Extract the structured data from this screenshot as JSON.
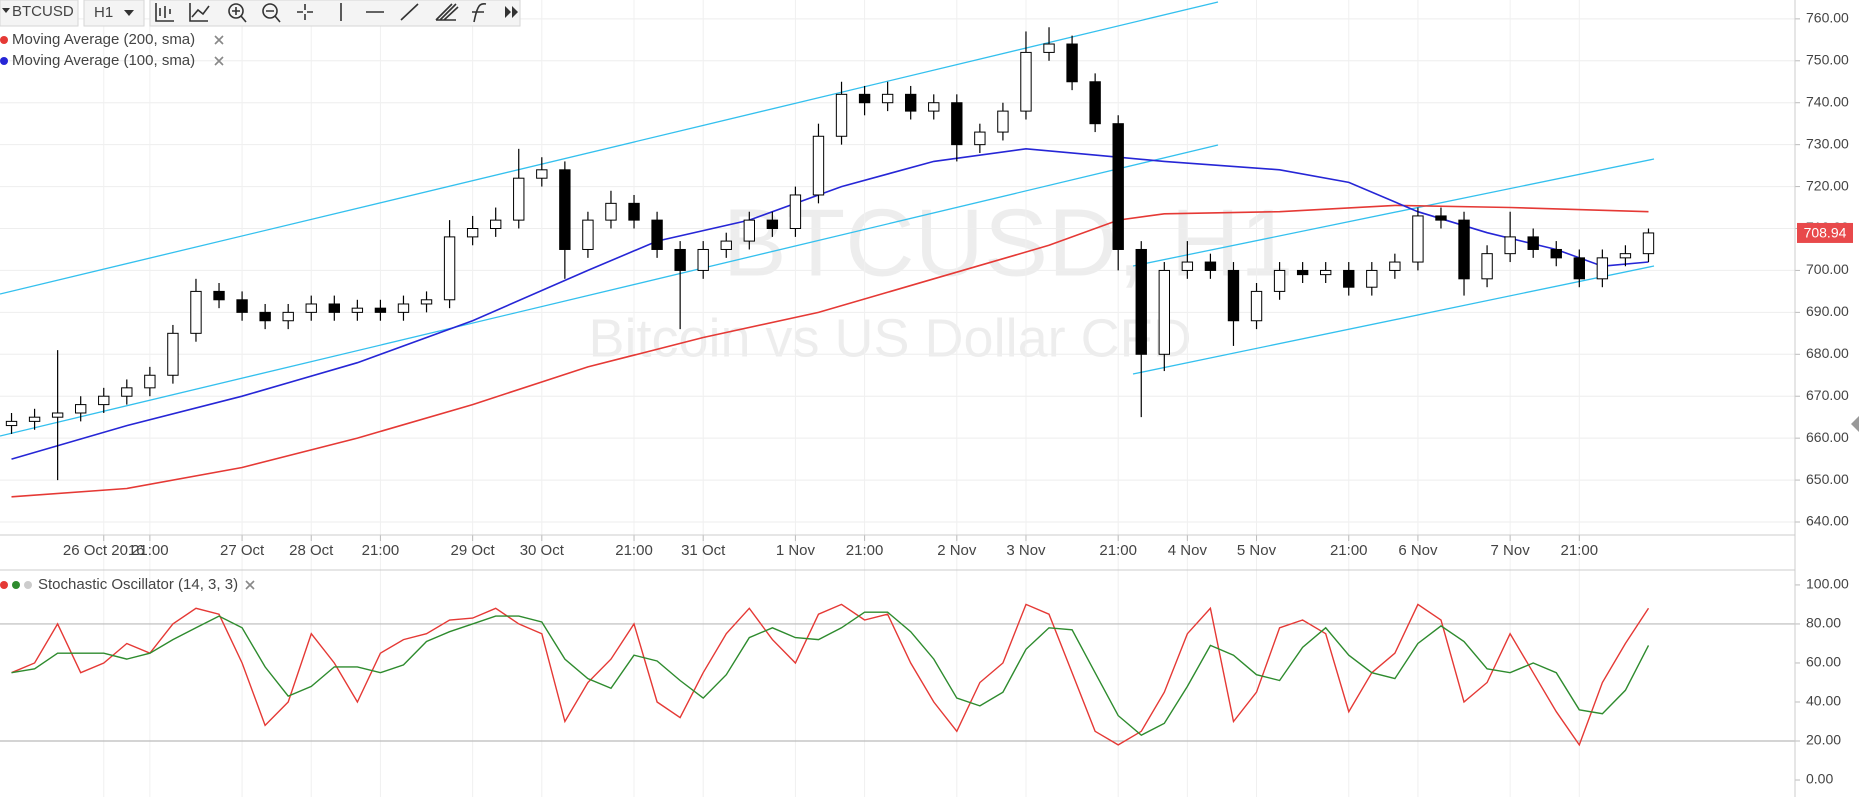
{
  "toolbar": {
    "symbol": "BTCUSD",
    "interval": "H1"
  },
  "chart_data": [
    {
      "type": "candlestick",
      "watermark": {
        "title": "BTCUSD, H1",
        "subtitle": "Bitcoin vs US Dollar CFD"
      },
      "categories": [
        null,
        null,
        null,
        null,
        "26 Oct 2016",
        null,
        "21:00",
        null,
        null,
        null,
        "27 Oct",
        null,
        null,
        "28 Oct",
        null,
        null,
        "21:00",
        null,
        null,
        null,
        "29 Oct",
        null,
        null,
        "30 Oct",
        null,
        null,
        null,
        "21:00",
        null,
        null,
        "31 Oct",
        null,
        null,
        null,
        "1 Nov",
        null,
        null,
        "21:00",
        null,
        null,
        null,
        "2 Nov",
        null,
        null,
        "3 Nov",
        null,
        null,
        null,
        "21:00",
        null,
        null,
        "4 Nov",
        null,
        null,
        "5 Nov",
        null,
        null,
        null,
        "21:00",
        null,
        null,
        "6 Nov",
        null,
        null,
        null,
        "7 Nov",
        null,
        null,
        "21:00",
        null,
        null,
        null
      ],
      "open": [
        663,
        664,
        665,
        666,
        668,
        670,
        672,
        675,
        685,
        695,
        693,
        690,
        688,
        690,
        692,
        690,
        691,
        690,
        692,
        693,
        708,
        710,
        712,
        722,
        724,
        705,
        712,
        716,
        712,
        705,
        700,
        705,
        707,
        712,
        710,
        718,
        732,
        742,
        740,
        742,
        738,
        740,
        730,
        733,
        738,
        752,
        754,
        745,
        735,
        705,
        680,
        700,
        702,
        700,
        688,
        695,
        700,
        699,
        700,
        696,
        700,
        702,
        713,
        712,
        698,
        704,
        708,
        705,
        703,
        698,
        703,
        704
      ],
      "high": [
        666,
        667,
        681,
        670,
        672,
        674,
        677,
        687,
        698,
        697,
        695,
        692,
        692,
        694,
        694,
        693,
        693,
        694,
        695,
        712,
        713,
        715,
        729,
        727,
        726,
        714,
        719,
        718,
        714,
        707,
        707,
        709,
        714,
        714,
        720,
        735,
        745,
        744,
        745,
        744,
        742,
        742,
        735,
        740,
        757,
        758,
        756,
        747,
        737,
        707,
        702,
        707,
        704,
        702,
        697,
        702,
        702,
        702,
        702,
        702,
        704,
        715,
        715,
        714,
        706,
        714,
        710,
        707,
        705,
        705,
        706,
        710
      ],
      "low": [
        661,
        662,
        650,
        664,
        666,
        668,
        670,
        673,
        683,
        691,
        688,
        686,
        686,
        688,
        688,
        688,
        688,
        688,
        690,
        691,
        706,
        708,
        710,
        720,
        698,
        703,
        710,
        710,
        703,
        686,
        698,
        703,
        705,
        708,
        708,
        716,
        730,
        737,
        738,
        736,
        736,
        726,
        728,
        731,
        736,
        750,
        743,
        733,
        700,
        665,
        676,
        698,
        698,
        682,
        686,
        693,
        697,
        697,
        694,
        694,
        698,
        700,
        710,
        694,
        696,
        702,
        703,
        701,
        696,
        696,
        701,
        702
      ],
      "close": [
        664,
        665,
        666,
        668,
        670,
        672,
        675,
        685,
        695,
        693,
        690,
        688,
        690,
        692,
        690,
        691,
        690,
        692,
        693,
        708,
        710,
        712,
        722,
        724,
        705,
        712,
        716,
        712,
        705,
        700,
        705,
        707,
        712,
        710,
        718,
        732,
        742,
        740,
        742,
        738,
        740,
        730,
        733,
        738,
        752,
        754,
        745,
        735,
        705,
        680,
        700,
        702,
        700,
        688,
        695,
        700,
        699,
        700,
        696,
        700,
        702,
        713,
        712,
        698,
        704,
        708,
        705,
        703,
        698,
        703,
        704,
        708.94
      ],
      "up_color": "#ffffff",
      "down_color": "#000000",
      "last_color": "#e8494b",
      "series": [
        {
          "name": "Moving Average (200, sma)",
          "color": "#e53935",
          "x": [
            0,
            5,
            10,
            15,
            20,
            25,
            30,
            35,
            40,
            45,
            48,
            50,
            55,
            60,
            65,
            71
          ],
          "values": [
            646,
            648,
            653,
            660,
            668,
            677,
            684,
            690,
            698,
            706,
            712,
            713.5,
            714,
            715.5,
            715,
            714
          ]
        },
        {
          "name": "Moving Average (100, sma)",
          "color": "#2626d6",
          "x": [
            0,
            5,
            10,
            15,
            20,
            25,
            28,
            32,
            36,
            40,
            44,
            47,
            50,
            55,
            58,
            61,
            64,
            67,
            69,
            71
          ],
          "values": [
            655,
            663,
            670,
            678,
            688,
            700,
            707,
            712,
            720,
            726,
            729,
            727.5,
            726,
            724,
            721,
            714,
            709,
            705,
            701,
            702
          ]
        }
      ],
      "ylim": [
        636.9,
        764.5
      ],
      "yticks": [
        {
          "value": 640,
          "label": "640.00"
        },
        {
          "value": 650,
          "label": "650.00"
        },
        {
          "value": 660,
          "label": "660.00"
        },
        {
          "value": 670,
          "label": "670.00"
        },
        {
          "value": 680,
          "label": "680.00"
        },
        {
          "value": 690,
          "label": "690.00"
        },
        {
          "value": 700,
          "label": "700.00"
        },
        {
          "value": 710,
          "label": "710.00"
        },
        {
          "value": 720,
          "label": "720.00"
        },
        {
          "value": 730,
          "label": "730.00"
        },
        {
          "value": 740,
          "label": "740.00"
        },
        {
          "value": 750,
          "label": "750.00"
        },
        {
          "value": 760,
          "label": "760.00"
        }
      ],
      "grid": true
    },
    {
      "type": "line",
      "title": "Stochastic Oscillator (14, 3, 3)",
      "series": [
        {
          "color": "#e53935",
          "values": [
            55,
            60,
            80,
            55,
            60,
            70,
            65,
            80,
            88,
            85,
            60,
            28,
            40,
            75,
            60,
            40,
            65,
            72,
            75,
            82,
            83,
            88,
            80,
            75,
            30,
            50,
            62,
            80,
            40,
            32,
            55,
            75,
            88,
            72,
            60,
            85,
            90,
            82,
            85,
            60,
            40,
            25,
            50,
            60,
            90,
            85,
            55,
            25,
            18,
            25,
            45,
            75,
            88,
            30,
            45,
            78,
            82,
            75,
            35,
            55,
            65,
            90,
            82,
            40,
            50,
            75,
            55,
            35,
            18,
            50,
            70,
            88
          ]
        },
        {
          "color": "#2e8b2e",
          "values": [
            55,
            57,
            65,
            65,
            65,
            62,
            65,
            72,
            78,
            84,
            78,
            58,
            43,
            48,
            58,
            58,
            55,
            59,
            71,
            76,
            80,
            84,
            84,
            81,
            62,
            52,
            47,
            64,
            61,
            51,
            42,
            54,
            73,
            78,
            73,
            72,
            78,
            86,
            86,
            76,
            62,
            42,
            38,
            45,
            67,
            78,
            77,
            55,
            33,
            23,
            29,
            48,
            69,
            64,
            54,
            51,
            68,
            78,
            64,
            55,
            52,
            70,
            79,
            71,
            57,
            55,
            60,
            55,
            36,
            34,
            46,
            69
          ]
        }
      ],
      "ylim": [
        -8.7,
        105.6
      ],
      "yticks": [
        {
          "value": 0,
          "label": "0.00"
        },
        {
          "value": 20,
          "label": "20.00"
        },
        {
          "value": 40,
          "label": "40.00"
        },
        {
          "value": 60,
          "label": "60.00"
        },
        {
          "value": 80,
          "label": "80.00"
        },
        {
          "value": 100,
          "label": "100.00"
        }
      ],
      "bands": [
        20,
        80
      ]
    }
  ]
}
